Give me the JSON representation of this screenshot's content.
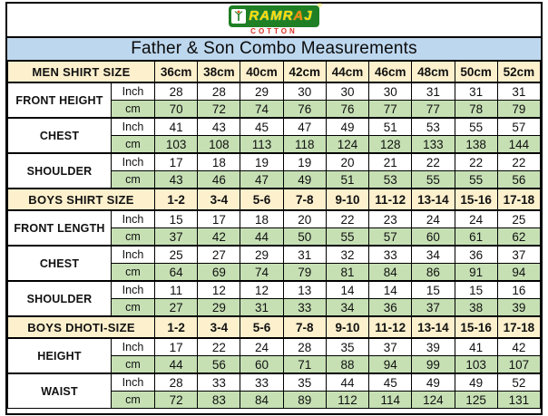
{
  "logo": {
    "brand_p1": "RAMR",
    "brand_p2": "A",
    "brand_p3": "J",
    "reg": "®",
    "subtitle": "COTTON",
    "icon": "plant-person-icon"
  },
  "title": "Father & Son Combo Measurements",
  "units": {
    "inch": "Inch",
    "cm": "cm"
  },
  "sections": [
    {
      "header": "MEN SHIRT SIZE",
      "sizes": [
        "36cm",
        "38cm",
        "40cm",
        "42cm",
        "44cm",
        "46cm",
        "48cm",
        "50cm",
        "52cm"
      ],
      "rows": [
        {
          "label": "FRONT HEIGHT",
          "inch": [
            "28",
            "28",
            "29",
            "30",
            "30",
            "30",
            "31",
            "31",
            "31"
          ],
          "cm": [
            "70",
            "72",
            "74",
            "76",
            "76",
            "77",
            "77",
            "78",
            "79"
          ]
        },
        {
          "label": "CHEST",
          "inch": [
            "41",
            "43",
            "45",
            "47",
            "49",
            "51",
            "53",
            "55",
            "57"
          ],
          "cm": [
            "103",
            "108",
            "113",
            "118",
            "124",
            "128",
            "133",
            "138",
            "144"
          ]
        },
        {
          "label": "SHOULDER",
          "inch": [
            "17",
            "18",
            "19",
            "19",
            "20",
            "21",
            "22",
            "22",
            "22"
          ],
          "cm": [
            "43",
            "46",
            "47",
            "49",
            "51",
            "53",
            "55",
            "55",
            "56"
          ]
        }
      ]
    },
    {
      "header": "BOYS SHIRT SIZE",
      "sizes": [
        "1-2",
        "3-4",
        "5-6",
        "7-8",
        "9-10",
        "11-12",
        "13-14",
        "15-16",
        "17-18"
      ],
      "rows": [
        {
          "label": "FRONT LENGTH",
          "inch": [
            "15",
            "17",
            "18",
            "20",
            "22",
            "23",
            "24",
            "24",
            "25"
          ],
          "cm": [
            "37",
            "42",
            "44",
            "50",
            "55",
            "57",
            "60",
            "61",
            "62"
          ]
        },
        {
          "label": "CHEST",
          "inch": [
            "25",
            "27",
            "29",
            "31",
            "32",
            "33",
            "34",
            "36",
            "37"
          ],
          "cm": [
            "64",
            "69",
            "74",
            "79",
            "81",
            "84",
            "86",
            "91",
            "94"
          ]
        },
        {
          "label": "SHOULDER",
          "inch": [
            "11",
            "12",
            "12",
            "13",
            "14",
            "14",
            "15",
            "15",
            "16"
          ],
          "cm": [
            "27",
            "29",
            "31",
            "33",
            "34",
            "36",
            "37",
            "38",
            "39"
          ]
        }
      ]
    },
    {
      "header": "BOYS DHOTI-SIZE",
      "sizes": [
        "1-2",
        "3-4",
        "5-6",
        "7-8",
        "9-10",
        "11-12",
        "13-14",
        "15-16",
        "17-18"
      ],
      "rows": [
        {
          "label": "HEIGHT",
          "inch": [
            "17",
            "22",
            "24",
            "28",
            "35",
            "37",
            "39",
            "41",
            "42"
          ],
          "cm": [
            "44",
            "56",
            "60",
            "71",
            "88",
            "94",
            "99",
            "103",
            "107"
          ]
        },
        {
          "label": "WAIST",
          "inch": [
            "28",
            "33",
            "33",
            "35",
            "44",
            "45",
            "49",
            "49",
            "52"
          ],
          "cm": [
            "72",
            "83",
            "84",
            "89",
            "112",
            "114",
            "124",
            "125",
            "131"
          ]
        }
      ]
    }
  ],
  "colors": {
    "title_bar": "#bdd7ee",
    "section_header_bg": "#fcf0cd",
    "cm_row_bg": "#c6e0b4",
    "inch_row_bg": "#ffffff",
    "logo_green": "#1e7f24",
    "logo_yellow": "#ffdd00",
    "gopuram_orange": "#f08418",
    "cotton_red": "#d93025",
    "border": "#000000"
  }
}
